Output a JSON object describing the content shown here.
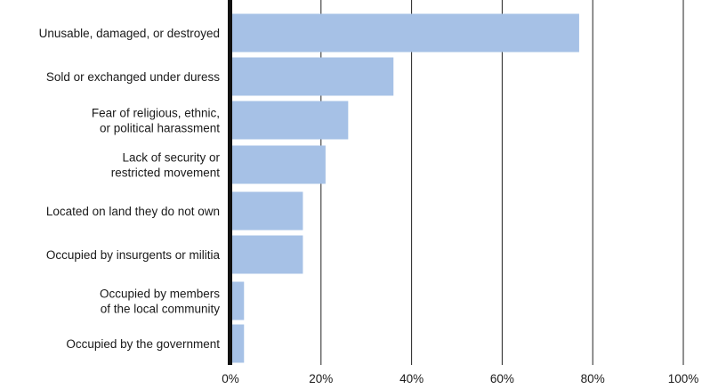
{
  "chart_data": {
    "type": "bar",
    "orientation": "horizontal",
    "categories": [
      [
        "Unusable, damaged, or destroyed"
      ],
      [
        "Sold or exchanged under duress"
      ],
      [
        "Fear of religious, ethnic,",
        "or political harassment"
      ],
      [
        "Lack of security or",
        "restricted movement"
      ],
      [
        "Located on land they do not own"
      ],
      [
        "Occupied by insurgents or militia"
      ],
      [
        "Occupied by members",
        "of the local community"
      ],
      [
        "Occupied by the government"
      ]
    ],
    "values": [
      77,
      36,
      26,
      21,
      16,
      16,
      3,
      3
    ],
    "xlim": [
      0,
      100
    ],
    "xticks": [
      0,
      20,
      40,
      60,
      80,
      100
    ],
    "xtick_labels": [
      "0%",
      "20%",
      "40%",
      "60%",
      "80%",
      "100%"
    ],
    "grid": "vertical",
    "bar_color": "#a6c1e6",
    "axis_color": "#111111",
    "grid_color": "#222222"
  }
}
